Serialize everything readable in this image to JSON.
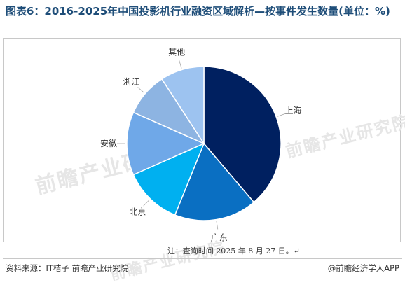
{
  "title": "图表6：2016-2025年中国投影机行业融资区域解析—按事件发生数量(单位：%)",
  "watermark": "前瞻产业研究院",
  "note": "注：查询时间 2025 年 8 月 27 日。↵",
  "source": "资料来源：IT桔子 前瞻产业研究院",
  "brand": "@前瞻经济学人APP",
  "chart_data": {
    "type": "pie",
    "title": "",
    "slices": [
      {
        "label": "上海",
        "value": 38,
        "color": "#002060"
      },
      {
        "label": "广东",
        "value": 17,
        "color": "#0a6fc2"
      },
      {
        "label": "北京",
        "value": 12,
        "color": "#00b0f0"
      },
      {
        "label": "安徽",
        "value": 13,
        "color": "#6fa8e8"
      },
      {
        "label": "浙江",
        "value": 9,
        "color": "#8db4e2"
      },
      {
        "label": "其他",
        "value": 9,
        "color": "#9dc3f0"
      }
    ],
    "start_angle_deg": 0,
    "direction": "clockwise",
    "legend": "none"
  }
}
